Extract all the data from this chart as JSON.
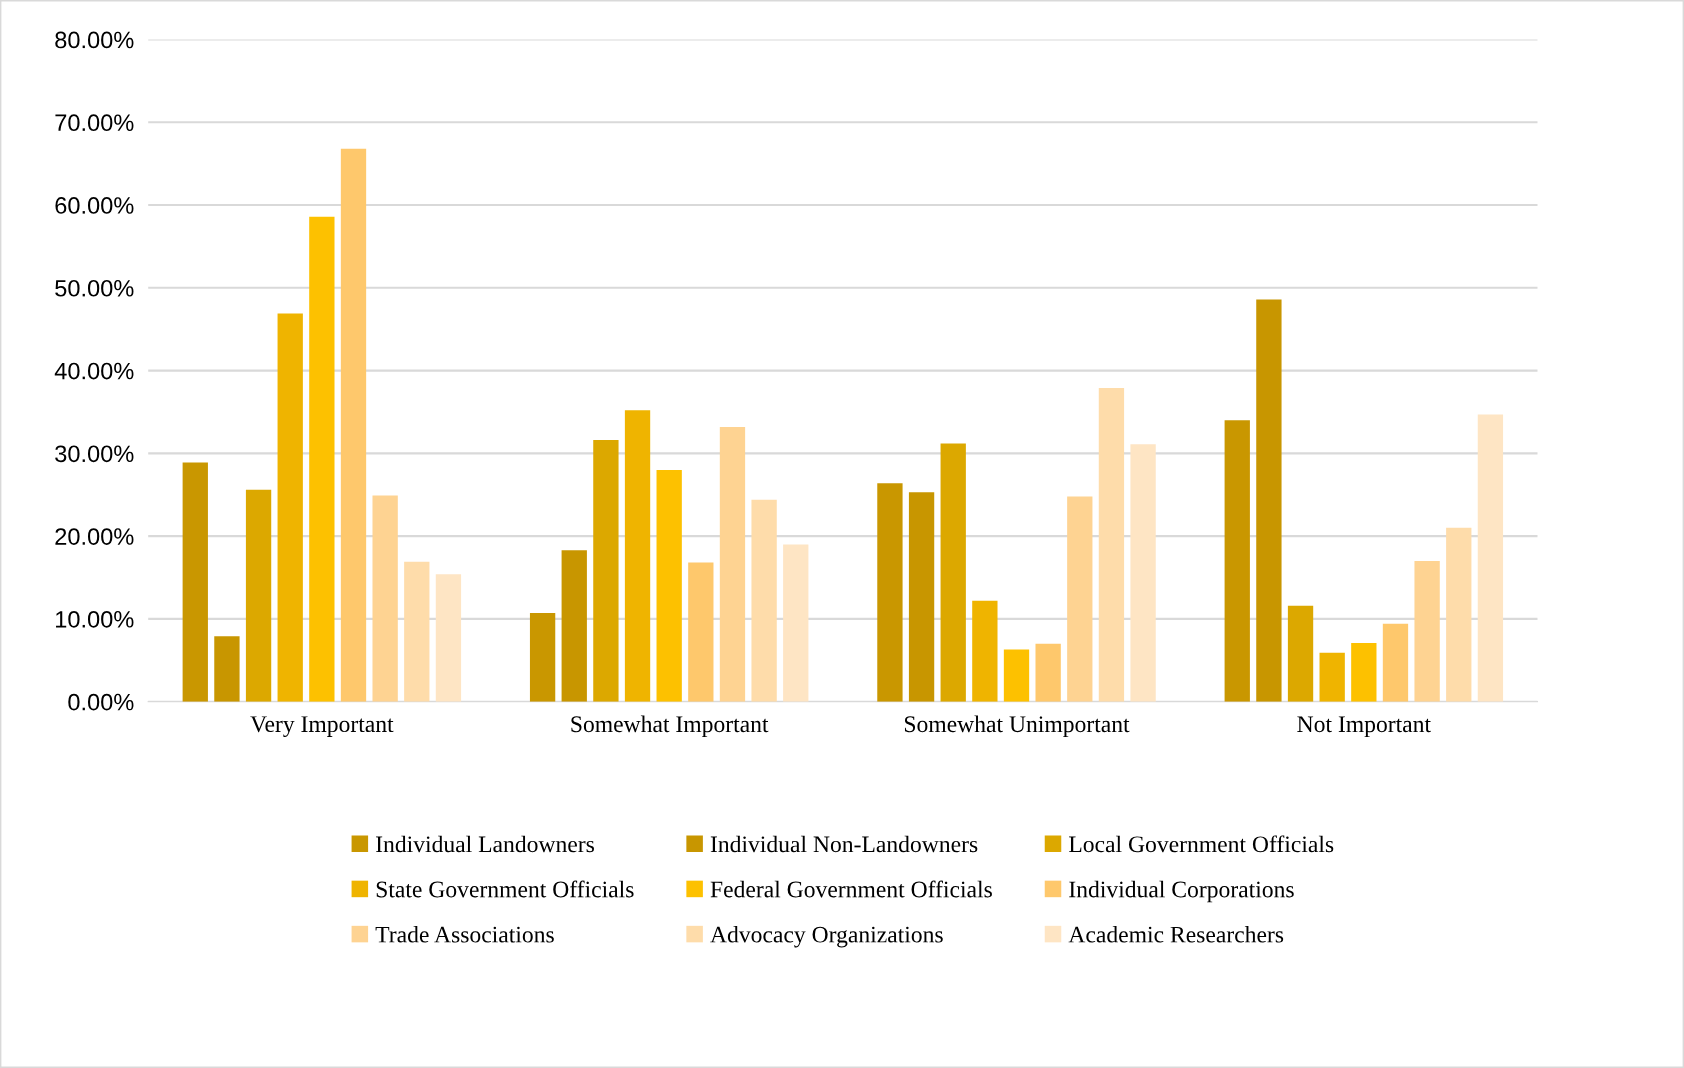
{
  "chart_data": {
    "type": "bar",
    "categories": [
      "Very Important",
      "Somewhat Important",
      "Somewhat Unimportant",
      "Not Important"
    ],
    "series": [
      {
        "name": "Individual Landowners",
        "color": "#c99700",
        "values": [
          28.9,
          10.7,
          26.4,
          34.0
        ]
      },
      {
        "name": "Individual Non-Landowners",
        "color": "#c89600",
        "values": [
          7.9,
          18.3,
          25.3,
          48.6
        ]
      },
      {
        "name": "Local Government Officials",
        "color": "#dca800",
        "values": [
          25.6,
          31.6,
          31.2,
          11.6
        ]
      },
      {
        "name": "State Government Officials",
        "color": "#efb400",
        "values": [
          46.9,
          35.2,
          12.2,
          5.9
        ]
      },
      {
        "name": "Federal Government Officials",
        "color": "#fdc100",
        "values": [
          58.6,
          28.0,
          6.3,
          7.1
        ]
      },
      {
        "name": "Individual Corporations",
        "color": "#fec86c",
        "values": [
          66.8,
          16.8,
          7.0,
          9.4
        ]
      },
      {
        "name": "Trade Associations",
        "color": "#fed392",
        "values": [
          24.9,
          33.2,
          24.8,
          17.0
        ]
      },
      {
        "name": "Advocacy Organizations",
        "color": "#fedcaa",
        "values": [
          16.9,
          24.4,
          37.9,
          21.0
        ]
      },
      {
        "name": "Academic Researchers",
        "color": "#fee5c4",
        "values": [
          15.4,
          19.0,
          31.1,
          34.7
        ]
      }
    ],
    "ylim": [
      0,
      80
    ],
    "yticks": [
      {
        "value": 0,
        "label": "0.00%"
      },
      {
        "value": 10,
        "label": "10.00%"
      },
      {
        "value": 20,
        "label": "20.00%"
      },
      {
        "value": 30,
        "label": "30.00%"
      },
      {
        "value": 40,
        "label": "40.00%"
      },
      {
        "value": 50,
        "label": "50.00%"
      },
      {
        "value": 60,
        "label": "60.00%"
      },
      {
        "value": 70,
        "label": "70.00%"
      },
      {
        "value": 80,
        "label": "80.00%"
      }
    ],
    "grid": "y",
    "legend": "bottom"
  }
}
